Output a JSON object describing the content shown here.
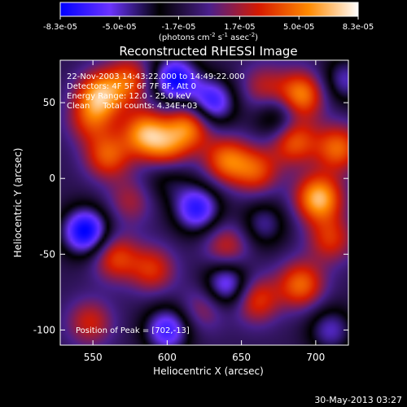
{
  "chart_data": {
    "type": "heatmap",
    "title": "Reconstructed RHESSI Image",
    "xlabel": "Heliocentric X (arcsec)",
    "ylabel": "Heliocentric Y (arcsec)",
    "xlim": [
      528,
      722
    ],
    "ylim": [
      -110,
      78
    ],
    "x_ticks": [
      550,
      600,
      650,
      700
    ],
    "y_ticks": [
      50,
      0,
      -50,
      -100
    ],
    "colorbar": {
      "ticks": [
        "-8.3e-05",
        "-5.0e-05",
        "-1.7e-05",
        "1.7e-05",
        "5.0e-05",
        "8.3e-05"
      ],
      "tick_values": [
        -8.3e-05,
        -5e-05,
        -1.7e-05,
        1.7e-05,
        5e-05,
        8.3e-05
      ],
      "range": [
        -8.3e-05,
        8.3e-05
      ],
      "unit_label_main": "(photons cm",
      "unit_sup1": "-2",
      "unit_mid": " s",
      "unit_sup2": "-1",
      "unit_tail": " asec",
      "unit_sup3": "-2",
      "unit_close": ")",
      "colormap": [
        "#0000ff",
        "#6b33ff",
        "#000000",
        "#4a1f8c",
        "#d61a00",
        "#ff8a00",
        "#ffffff"
      ]
    },
    "annotations": [
      "22-Nov-2003 14:43:22.000 to 14:49:22.000",
      "Detectors: 4F 5F 6F 7F 8F, Att 0",
      "Energy Range: 12.0 - 25.0 keV",
      "Clean     Total counts: 4.34E+03"
    ],
    "peak_label": "Position of Peak = [702,-13]",
    "peak": [
      702,
      -13
    ],
    "intensity_blobs": [
      {
        "x": 555,
        "y": 55,
        "value": 7.5e-05
      },
      {
        "x": 548,
        "y": 38,
        "value": 4e-05
      },
      {
        "x": 575,
        "y": 65,
        "value": 5e-05
      },
      {
        "x": 560,
        "y": 15,
        "value": 5.5e-05
      },
      {
        "x": 585,
        "y": 30,
        "value": 7e-05
      },
      {
        "x": 600,
        "y": 20,
        "value": 5e-05
      },
      {
        "x": 615,
        "y": 35,
        "value": 6.5e-05
      },
      {
        "x": 640,
        "y": 12,
        "value": 6e-05
      },
      {
        "x": 660,
        "y": 5,
        "value": 5e-05
      },
      {
        "x": 690,
        "y": 55,
        "value": 7e-05
      },
      {
        "x": 702,
        "y": -13,
        "value": 8.3e-05
      },
      {
        "x": 715,
        "y": 20,
        "value": 6e-05
      },
      {
        "x": 685,
        "y": 25,
        "value": 6e-05
      },
      {
        "x": 665,
        "y": 60,
        "value": 3.5e-05
      },
      {
        "x": 575,
        "y": -15,
        "value": 3e-05
      },
      {
        "x": 565,
        "y": -52,
        "value": 5e-05
      },
      {
        "x": 590,
        "y": -60,
        "value": 4.5e-05
      },
      {
        "x": 640,
        "y": -45,
        "value": 4e-05
      },
      {
        "x": 660,
        "y": -80,
        "value": 5e-05
      },
      {
        "x": 690,
        "y": -70,
        "value": 6e-05
      },
      {
        "x": 710,
        "y": -40,
        "value": 4.5e-05
      },
      {
        "x": 625,
        "y": -85,
        "value": 3e-05
      },
      {
        "x": 548,
        "y": -95,
        "value": 4e-05
      },
      {
        "x": 605,
        "y": 65,
        "value": -7.5e-05
      },
      {
        "x": 630,
        "y": 50,
        "value": -6.5e-05
      },
      {
        "x": 545,
        "y": -35,
        "value": -8e-05
      },
      {
        "x": 620,
        "y": -20,
        "value": -6.5e-05
      },
      {
        "x": 640,
        "y": -70,
        "value": -6e-05
      },
      {
        "x": 600,
        "y": -100,
        "value": -6e-05
      },
      {
        "x": 675,
        "y": 40,
        "value": -4e-05
      },
      {
        "x": 720,
        "y": 65,
        "value": -4e-05
      },
      {
        "x": 710,
        "y": -100,
        "value": -4e-05
      },
      {
        "x": 600,
        "y": 0,
        "value": -2.5e-05
      },
      {
        "x": 665,
        "y": -30,
        "value": -3.5e-05
      }
    ]
  },
  "footer": {
    "date": "30-May-2013 03:27"
  }
}
